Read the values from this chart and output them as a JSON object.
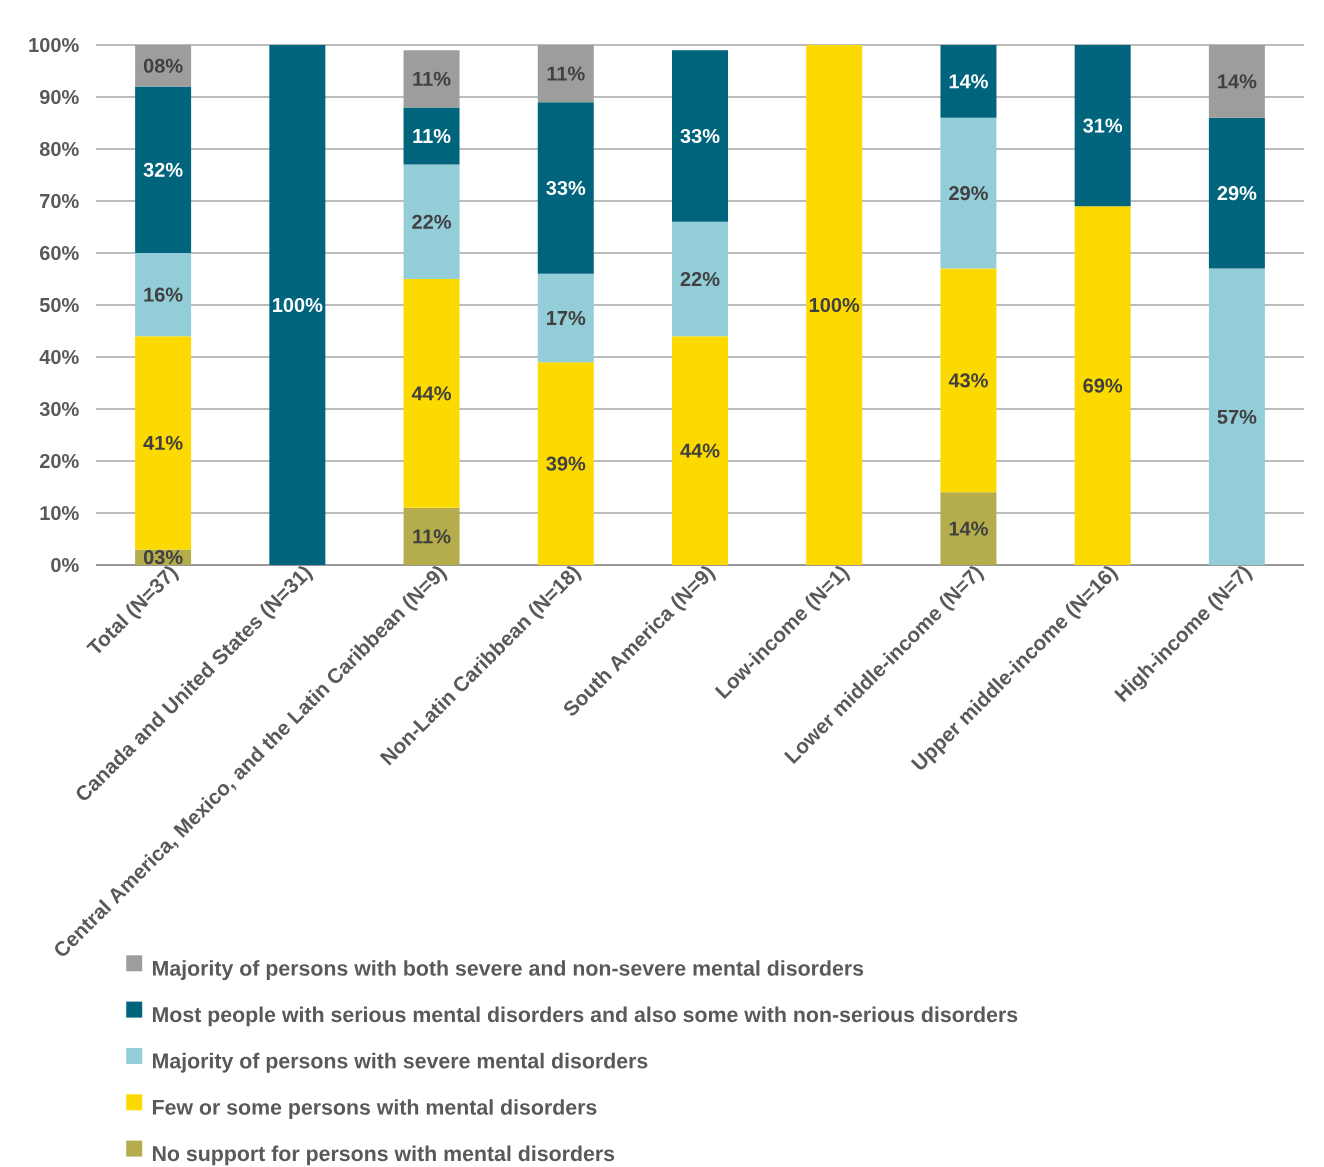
{
  "chart_data": {
    "type": "bar",
    "stacked": true,
    "categories": [
      "Total (N=37)",
      "Canada and United States (N=31)",
      "Central America, Mexico, and the Latin Caribbean (N=9)",
      "Non-Latin Caribbean (N=18)",
      "South America (N=9)",
      "Low-income (N=1)",
      "Lower middle-income (N=7)",
      "Upper middle-income (N=16)",
      "High-income (N=7)"
    ],
    "series": [
      {
        "name": "No support for persons with mental disorders",
        "color": "#b5ad4b",
        "values": [
          3,
          null,
          11,
          null,
          null,
          null,
          14,
          null,
          null
        ],
        "value_labels": [
          "03%",
          null,
          "11%",
          null,
          null,
          null,
          "14%",
          null,
          null
        ]
      },
      {
        "name": "Few or some persons with mental disorders",
        "color": "#fcda00",
        "values": [
          41,
          null,
          44,
          39,
          44,
          100,
          43,
          69,
          null
        ],
        "value_labels": [
          "41%",
          null,
          "44%",
          "39%",
          "44%",
          "100%",
          "43%",
          "69%",
          null
        ]
      },
      {
        "name": "Majority of persons with severe mental disorders",
        "color": "#92cdd8",
        "values": [
          16,
          null,
          22,
          17,
          22,
          null,
          29,
          null,
          57
        ],
        "value_labels": [
          "16%",
          null,
          "22%",
          "17%",
          "22%",
          null,
          "29%",
          null,
          "57%"
        ]
      },
      {
        "name": "Most people with serious mental disorders and also some with non-serious disorders",
        "color": "#00657c",
        "values": [
          32,
          100,
          11,
          33,
          33,
          null,
          14,
          31,
          29
        ],
        "value_labels": [
          "32%",
          "100%",
          "11%",
          "33%",
          "33%",
          null,
          "14%",
          "31%",
          "29%"
        ]
      },
      {
        "name": "Majority of persons with both severe and non-severe mental disorders",
        "color": "#9d9d9c",
        "values": [
          8,
          null,
          11,
          11,
          null,
          null,
          null,
          null,
          14
        ],
        "value_labels": [
          "08%",
          null,
          "11%",
          "11%",
          null,
          null,
          null,
          null,
          "14%"
        ]
      }
    ],
    "ylim": [
      0,
      100
    ],
    "yticks": [
      {
        "value": 0,
        "label": "0%"
      },
      {
        "value": 10,
        "label": "10%"
      },
      {
        "value": 20,
        "label": "20%"
      },
      {
        "value": 30,
        "label": "30%"
      },
      {
        "value": 40,
        "label": "40%"
      },
      {
        "value": 50,
        "label": "50%"
      },
      {
        "value": 60,
        "label": "60%"
      },
      {
        "value": 70,
        "label": "70%"
      },
      {
        "value": 80,
        "label": "80%"
      },
      {
        "value": 90,
        "label": "90%"
      },
      {
        "value": 100,
        "label": "100%"
      }
    ],
    "grid": "y",
    "legend": "bottom"
  }
}
